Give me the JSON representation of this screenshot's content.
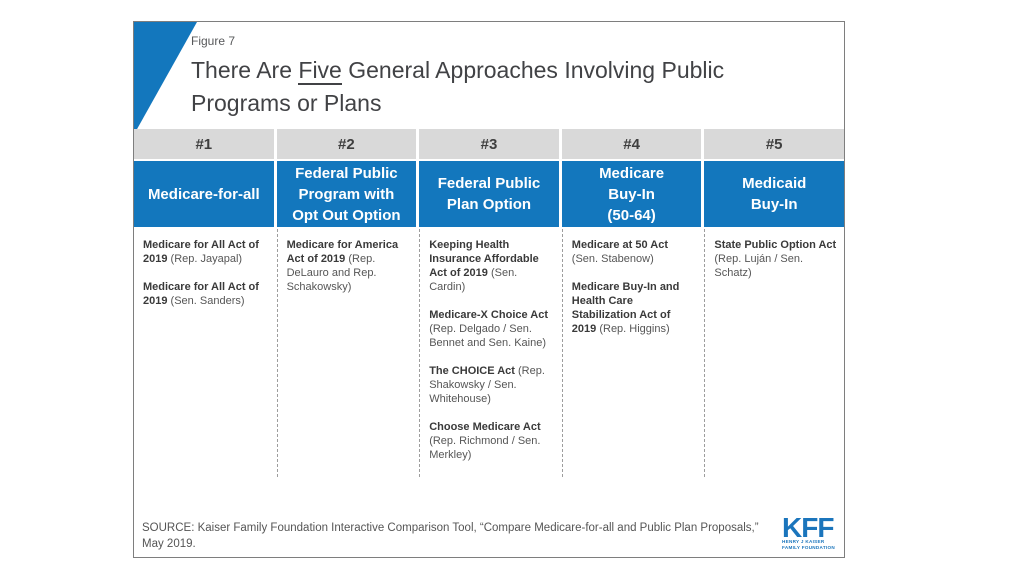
{
  "figure": {
    "label": "Figure 7",
    "title_pre": "There Are ",
    "title_underline": "Five",
    "title_post": " General Approaches Involving Public Programs or Plans"
  },
  "table": {
    "columns": [
      {
        "num": "#1",
        "header": "Medicare-for-all",
        "entries": [
          {
            "act": "Medicare for All Act of 2019",
            "sponsor": "(Rep. Jayapal)"
          },
          {
            "act": "Medicare for All Act of 2019",
            "sponsor": "(Sen. Sanders)"
          }
        ]
      },
      {
        "num": "#2",
        "header": "Federal Public\nProgram with\nOpt Out Option",
        "entries": [
          {
            "act": "Medicare for America Act of 2019",
            "sponsor": "(Rep. DeLauro and Rep. Schakowsky)"
          }
        ]
      },
      {
        "num": "#3",
        "header": "Federal Public\nPlan Option",
        "entries": [
          {
            "act": "Keeping Health Insurance Affordable Act of 2019",
            "sponsor": "(Sen. Cardin)"
          },
          {
            "act": "Medicare-X Choice Act",
            "sponsor": "(Rep. Delgado / Sen. Bennet and Sen. Kaine)"
          },
          {
            "act": "The CHOICE Act",
            "sponsor": "(Rep. Shakowsky / Sen. Whitehouse)"
          },
          {
            "act": "Choose Medicare Act",
            "sponsor": "(Rep. Richmond / Sen. Merkley)"
          }
        ]
      },
      {
        "num": "#4",
        "header": "Medicare\nBuy-In\n(50-64)",
        "entries": [
          {
            "act": "Medicare at 50 Act",
            "sponsor": "(Sen. Stabenow)"
          },
          {
            "act": "Medicare Buy-In and Health Care Stabilization Act of 2019",
            "sponsor": "(Rep. Higgins)"
          }
        ]
      },
      {
        "num": "#5",
        "header": "Medicaid\nBuy-In",
        "entries": [
          {
            "act": "State Public Option Act",
            "sponsor": "(Rep. Luján / Sen. Schatz)"
          }
        ]
      }
    ]
  },
  "footer": {
    "source": "SOURCE: Kaiser Family Foundation Interactive Comparison Tool, “Compare Medicare-for-all and Public Plan Proposals,” May 2019.",
    "logo_text": "KFF",
    "logo_sub1": "HENRY J KAISER",
    "logo_sub2": "FAMILY FOUNDATION"
  },
  "colors": {
    "kff_blue": "#1377bd",
    "header_gray": "#d9d9d9"
  }
}
